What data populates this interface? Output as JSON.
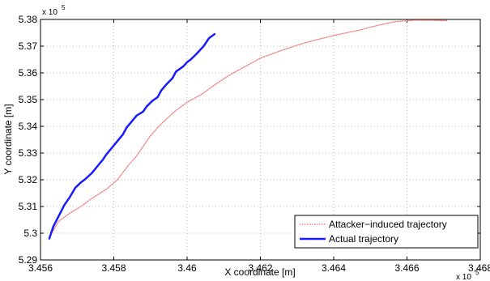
{
  "chart_data": {
    "type": "line",
    "xlabel": "X coordinate [m]",
    "ylabel": "Y coordinate [m]",
    "x_exponent": {
      "base": "x 10",
      "power": "5"
    },
    "y_exponent": {
      "base": "x 10",
      "power": "5"
    },
    "xlim": [
      345600,
      346800
    ],
    "ylim": [
      529000,
      538000
    ],
    "grid": true,
    "x_ticks": [
      345600,
      345800,
      346000,
      346200,
      346400,
      346600,
      346800
    ],
    "x_tick_labels": [
      "3.456",
      "3.458",
      "3.46",
      "3.462",
      "3.464",
      "3.466",
      "3.468"
    ],
    "y_ticks": [
      529000,
      530000,
      531000,
      532000,
      533000,
      534000,
      535000,
      536000,
      537000,
      538000
    ],
    "y_tick_labels": [
      "5.29",
      "5.3",
      "5.31",
      "5.32",
      "5.33",
      "5.34",
      "5.35",
      "5.36",
      "5.37",
      "5.38"
    ],
    "legend_position": "bottom-right",
    "series": [
      {
        "name": "Attacker−induced trajectory",
        "color": "#f08080",
        "style": "dotted",
        "x": [
          345624,
          345650,
          345680,
          345710,
          345740,
          345780,
          345810,
          345840,
          345860,
          345880,
          345900,
          345930,
          345970,
          346000,
          346040,
          346080,
          346120,
          346160,
          346200,
          346260,
          346320,
          346400,
          346470,
          346520,
          346570,
          346620,
          346650,
          346670,
          346680,
          346695,
          346710
        ],
        "y": [
          529850,
          530450,
          530750,
          531000,
          531300,
          531650,
          532000,
          532550,
          532850,
          533250,
          533650,
          534100,
          534600,
          534900,
          535200,
          535600,
          535950,
          536250,
          536550,
          536850,
          537120,
          537400,
          537600,
          537780,
          537920,
          537970,
          537970,
          537970,
          537960,
          537960,
          537960
        ]
      },
      {
        "name": "Actual trajectory",
        "color": "#1a1aff",
        "style": "solid",
        "x": [
          345624,
          345635,
          345650,
          345665,
          345680,
          345695,
          345710,
          345720,
          345740,
          345755,
          345770,
          345780,
          345795,
          345810,
          345825,
          345835,
          345850,
          345862,
          345880,
          345890,
          345905,
          345920,
          345930,
          345942,
          345960,
          345970,
          345990,
          346000,
          346010,
          346025,
          346045,
          346060,
          346075
        ],
        "y": [
          529800,
          530250,
          530650,
          531050,
          531350,
          531700,
          531900,
          532000,
          532250,
          532500,
          532750,
          532950,
          533200,
          533450,
          533700,
          533950,
          534200,
          534400,
          534550,
          534750,
          534950,
          535100,
          535350,
          535550,
          535800,
          536050,
          536250,
          536400,
          536500,
          536700,
          537000,
          537300,
          537450
        ]
      }
    ]
  }
}
